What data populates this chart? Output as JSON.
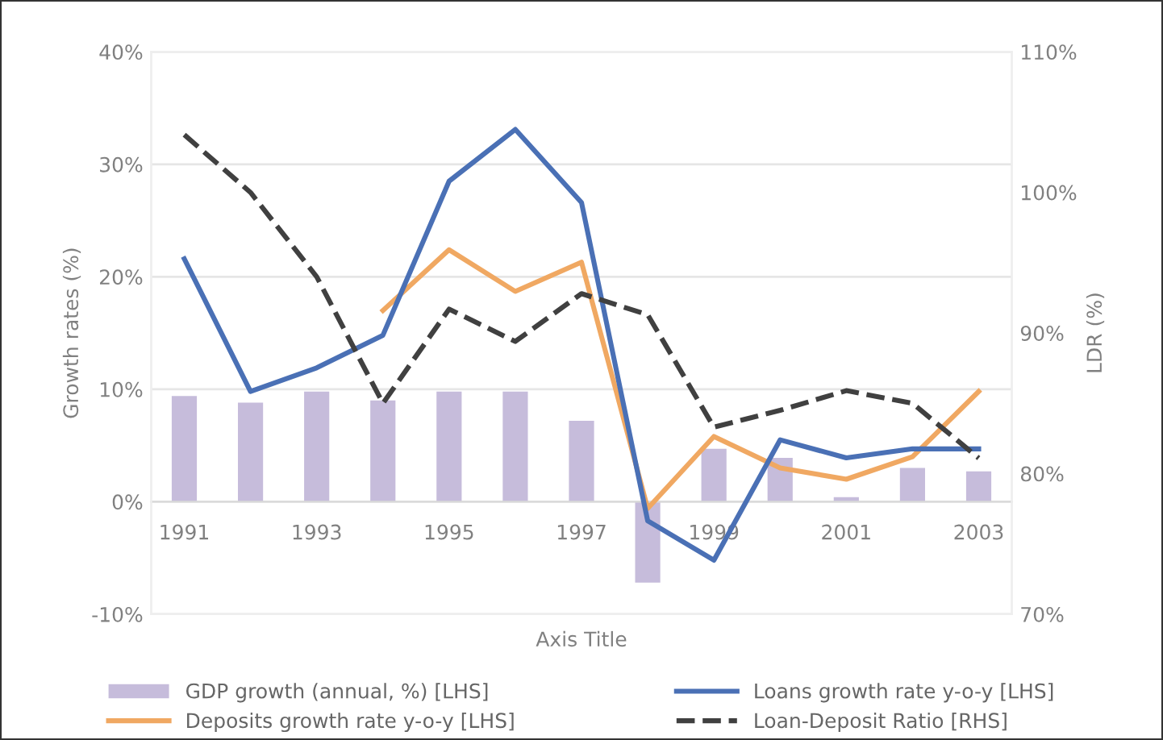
{
  "chart_data": {
    "type": "bar",
    "xlabel": "Axis Title",
    "ylabel": "Growth rates (%)",
    "y2label": "LDR (%)",
    "categories": [
      "1991",
      null,
      "1993",
      null,
      "1995",
      null,
      "1997",
      null,
      "1999",
      null,
      "2001",
      null,
      "2003"
    ],
    "series": [
      {
        "name": "GDP growth (annual, %) [LHS]",
        "color": "#c6bcdb",
        "values": [
          9.4,
          8.8,
          9.8,
          9.0,
          9.8,
          9.8,
          7.2,
          -7.2,
          4.7,
          3.9,
          0.4,
          3.0,
          2.7
        ]
      },
      {
        "name": "Deposits growth rate y-o-y [LHS]",
        "type": "line",
        "color": "#f0a862",
        "values": [
          null,
          null,
          null,
          17.0,
          22.4,
          18.7,
          21.3,
          -0.6,
          5.8,
          3.0,
          2.0,
          4.0,
          9.8
        ]
      },
      {
        "name": "Loans growth rate y-o-y [LHS]",
        "type": "line",
        "color": "#4a70b5",
        "values": [
          21.6,
          9.8,
          11.9,
          14.8,
          28.5,
          33.1,
          26.6,
          -1.7,
          -5.2,
          5.5,
          3.9,
          4.7,
          4.7
        ]
      },
      {
        "name": "Loan-Deposit Ratio [RHS]",
        "type": "line",
        "axis": "y2",
        "color": "#404040",
        "line_style": "dashed",
        "values": [
          104.1,
          100.0,
          94.0,
          85.0,
          91.7,
          89.4,
          92.8,
          91.3,
          83.3,
          84.5,
          85.9,
          85.0,
          81.1
        ]
      }
    ],
    "ylim": [
      -10,
      40
    ],
    "yticks": [
      {
        "value": -10,
        "label": "-10%"
      },
      {
        "value": 0,
        "label": "0%"
      },
      {
        "value": 10,
        "label": "10%"
      },
      {
        "value": 20,
        "label": "20%"
      },
      {
        "value": 30,
        "label": "30%"
      },
      {
        "value": 40,
        "label": "40%"
      }
    ],
    "y2lim": [
      70,
      110
    ],
    "y2ticks": [
      {
        "value": 70,
        "label": "70%"
      },
      {
        "value": 80,
        "label": "80%"
      },
      {
        "value": 90,
        "label": "90%"
      },
      {
        "value": 100,
        "label": "100%"
      },
      {
        "value": 110,
        "label": "110%"
      }
    ],
    "grid": "y",
    "legend": "bottom"
  }
}
